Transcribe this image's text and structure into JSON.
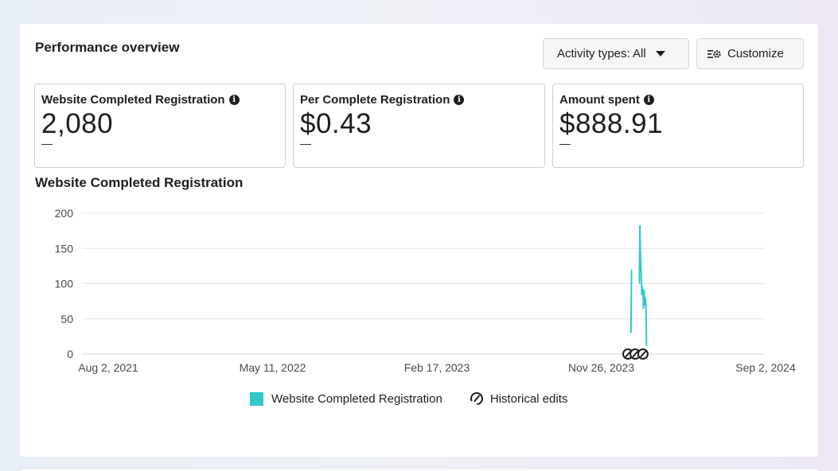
{
  "panel": {
    "title": "Performance overview",
    "activity_button": "Activity types: All",
    "customize_button": "Customize"
  },
  "metrics": [
    {
      "label": "Website Completed Registration",
      "value": "2,080",
      "delta": "—"
    },
    {
      "label": "Per Complete Registration",
      "value": "$0.43",
      "delta": "—"
    },
    {
      "label": "Amount spent",
      "value": "$888.91",
      "delta": "—"
    }
  ],
  "chart": {
    "title": "Website Completed Registration",
    "legend": {
      "series": "Website Completed Registration",
      "edits": "Historical edits"
    }
  },
  "colors": {
    "series": "#31c9c9",
    "grid": "#e4e6eb"
  },
  "chart_data": {
    "type": "line",
    "title": "Website Completed Registration",
    "xlabel": "",
    "ylabel": "",
    "ylim": [
      0,
      200
    ],
    "y_ticks": [
      0,
      50,
      100,
      150,
      200
    ],
    "x_tick_labels": [
      "Aug 2, 2021",
      "May 11, 2022",
      "Feb 17, 2023",
      "Nov 26, 2023",
      "Sep 2, 2024"
    ],
    "xlim": [
      "2021-08-02",
      "2024-09-02"
    ],
    "grid": true,
    "legend_position": "bottom",
    "series": [
      {
        "name": "Website Completed Registration",
        "segments": [
          [
            [
              "2024-01-23",
              30
            ],
            [
              "2024-01-24",
              120
            ]
          ],
          [
            [
              "2024-02-06",
              100
            ],
            [
              "2024-02-07",
              182
            ],
            [
              "2024-02-08",
              135
            ],
            [
              "2024-02-09",
              120
            ],
            [
              "2024-02-10",
              85
            ],
            [
              "2024-02-11",
              95
            ],
            [
              "2024-02-12",
              90
            ],
            [
              "2024-02-13",
              65
            ],
            [
              "2024-02-14",
              90
            ],
            [
              "2024-02-15",
              70
            ],
            [
              "2024-02-16",
              80
            ],
            [
              "2024-02-17",
              68
            ],
            [
              "2024-02-18",
              12
            ]
          ]
        ]
      }
    ],
    "historical_edits": [
      "2024-01-18",
      "2024-01-30",
      "2024-02-12"
    ]
  }
}
